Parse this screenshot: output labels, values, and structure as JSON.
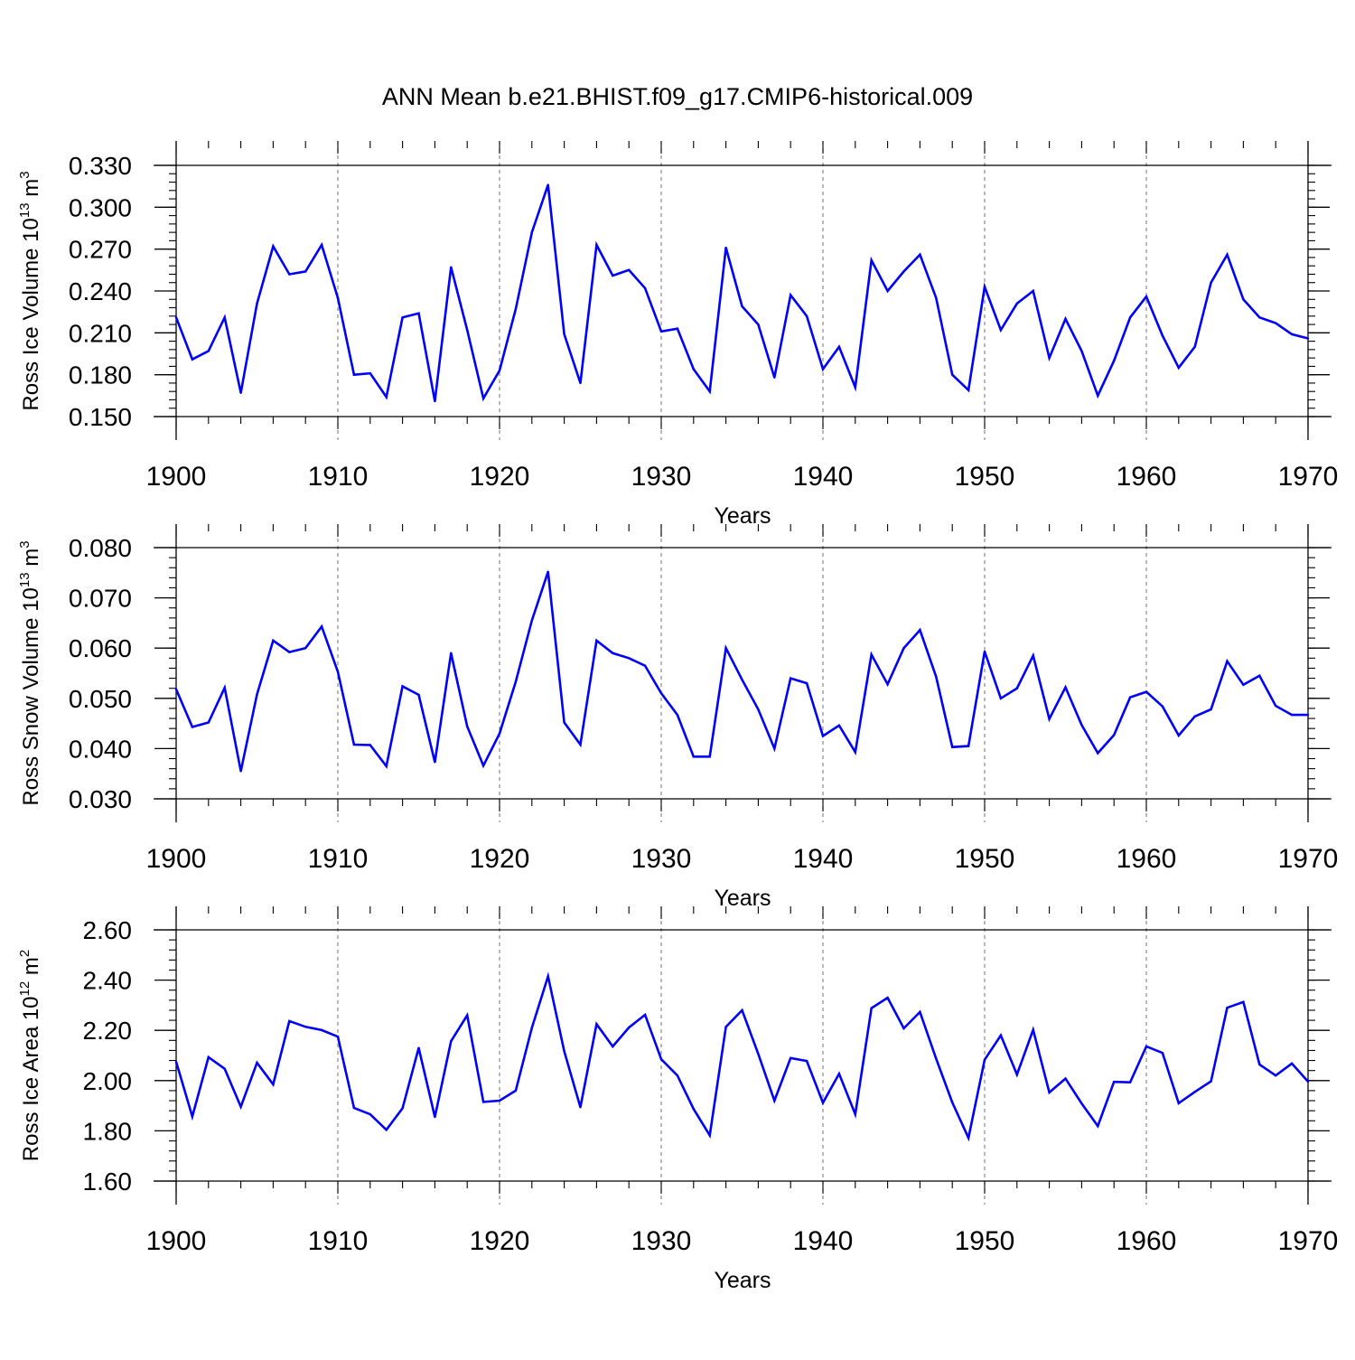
{
  "title": "ANN Mean b.e21.BHIST.f09_g17.CMIP6-historical.009",
  "line_color": "#0000ff",
  "chart_data": [
    {
      "type": "line",
      "xlabel": "Years",
      "ylabel_main": "Ross Ice Volume 10",
      "ylabel_sup": "13",
      "ylabel_unit": " m",
      "ylabel_unit_sup": "3",
      "xlim": [
        1900,
        1970
      ],
      "ylim": [
        0.15,
        0.33
      ],
      "x_ticks": [
        1900,
        1910,
        1920,
        1930,
        1940,
        1950,
        1960,
        1970
      ],
      "x_tick_labels": [
        "1900",
        "1910",
        "1920",
        "1930",
        "1940",
        "1950",
        "1960",
        "1970"
      ],
      "y_ticks": [
        0.15,
        0.18,
        0.21,
        0.24,
        0.27,
        0.3,
        0.33
      ],
      "y_tick_labels": [
        "0.150",
        "0.180",
        "0.210",
        "0.240",
        "0.270",
        "0.300",
        "0.330"
      ],
      "y_minor_step": 0.006,
      "grid": "dashed vertical at major x ticks",
      "series": [
        {
          "name": "Ross Ice Volume",
          "x": [
            1900,
            1901,
            1902,
            1903,
            1904,
            1905,
            1906,
            1907,
            1908,
            1909,
            1910,
            1911,
            1912,
            1913,
            1914,
            1915,
            1916,
            1917,
            1918,
            1919,
            1920,
            1921,
            1922,
            1923,
            1924,
            1925,
            1926,
            1927,
            1928,
            1929,
            1930,
            1931,
            1932,
            1933,
            1934,
            1935,
            1936,
            1937,
            1938,
            1939,
            1940,
            1941,
            1942,
            1943,
            1944,
            1945,
            1946,
            1947,
            1948,
            1949,
            1950,
            1951,
            1952,
            1953,
            1954,
            1955,
            1956,
            1957,
            1958,
            1959,
            1960,
            1961,
            1962,
            1963,
            1964,
            1965,
            1966,
            1967,
            1968,
            1969,
            1970
          ],
          "values": [
            0.221,
            0.191,
            0.197,
            0.221,
            0.167,
            0.231,
            0.272,
            0.252,
            0.254,
            0.273,
            0.235,
            0.18,
            0.181,
            0.164,
            0.221,
            0.224,
            0.161,
            0.257,
            0.212,
            0.163,
            0.183,
            0.227,
            0.282,
            0.316,
            0.209,
            0.174,
            0.273,
            0.251,
            0.255,
            0.242,
            0.211,
            0.213,
            0.184,
            0.168,
            0.271,
            0.229,
            0.216,
            0.178,
            0.237,
            0.222,
            0.184,
            0.2,
            0.171,
            0.262,
            0.24,
            0.254,
            0.266,
            0.235,
            0.18,
            0.169,
            0.243,
            0.212,
            0.231,
            0.24,
            0.192,
            0.22,
            0.197,
            0.165,
            0.19,
            0.221,
            0.236,
            0.208,
            0.185,
            0.2,
            0.246,
            0.266,
            0.234,
            0.221,
            0.217,
            0.209,
            0.206
          ]
        }
      ]
    },
    {
      "type": "line",
      "xlabel": "Years",
      "ylabel_main": "Ross Snow Volume 10",
      "ylabel_sup": "13",
      "ylabel_unit": " m",
      "ylabel_unit_sup": "3",
      "xlim": [
        1900,
        1970
      ],
      "ylim": [
        0.03,
        0.08
      ],
      "x_ticks": [
        1900,
        1910,
        1920,
        1930,
        1940,
        1950,
        1960,
        1970
      ],
      "x_tick_labels": [
        "1900",
        "1910",
        "1920",
        "1930",
        "1940",
        "1950",
        "1960",
        "1970"
      ],
      "y_ticks": [
        0.03,
        0.04,
        0.05,
        0.06,
        0.07,
        0.08
      ],
      "y_tick_labels": [
        "0.030",
        "0.040",
        "0.050",
        "0.060",
        "0.070",
        "0.080"
      ],
      "y_minor_step": 0.002,
      "grid": "dashed vertical at major x ticks",
      "series": [
        {
          "name": "Ross Snow Volume",
          "x": [
            1900,
            1901,
            1902,
            1903,
            1904,
            1905,
            1906,
            1907,
            1908,
            1909,
            1910,
            1911,
            1912,
            1913,
            1914,
            1915,
            1916,
            1917,
            1918,
            1919,
            1920,
            1921,
            1922,
            1923,
            1924,
            1925,
            1926,
            1927,
            1928,
            1929,
            1930,
            1931,
            1932,
            1933,
            1934,
            1935,
            1936,
            1937,
            1938,
            1939,
            1940,
            1941,
            1942,
            1943,
            1944,
            1945,
            1946,
            1947,
            1948,
            1949,
            1950,
            1951,
            1952,
            1953,
            1954,
            1955,
            1956,
            1957,
            1958,
            1959,
            1960,
            1961,
            1962,
            1963,
            1964,
            1965,
            1966,
            1967,
            1968,
            1969,
            1970
          ],
          "values": [
            0.0518,
            0.0443,
            0.0452,
            0.0521,
            0.0355,
            0.0508,
            0.0615,
            0.0592,
            0.06,
            0.0643,
            0.0553,
            0.0408,
            0.0407,
            0.0365,
            0.0524,
            0.0507,
            0.0373,
            0.059,
            0.0444,
            0.0366,
            0.043,
            0.0533,
            0.0655,
            0.0752,
            0.0452,
            0.0408,
            0.0615,
            0.059,
            0.058,
            0.0565,
            0.051,
            0.0467,
            0.0384,
            0.0384,
            0.06,
            0.0537,
            0.0478,
            0.04,
            0.054,
            0.053,
            0.0425,
            0.0446,
            0.0393,
            0.0587,
            0.0528,
            0.06,
            0.0636,
            0.0543,
            0.0403,
            0.0405,
            0.0593,
            0.05,
            0.052,
            0.0585,
            0.0459,
            0.0522,
            0.0447,
            0.0391,
            0.0427,
            0.0502,
            0.0513,
            0.0484,
            0.0426,
            0.0464,
            0.0478,
            0.0574,
            0.0527,
            0.0545,
            0.0485,
            0.0467,
            0.0467
          ]
        }
      ]
    },
    {
      "type": "line",
      "xlabel": "Years",
      "ylabel_main": "Ross Ice Area 10",
      "ylabel_sup": "12",
      "ylabel_unit": " m",
      "ylabel_unit_sup": "2",
      "xlim": [
        1900,
        1970
      ],
      "ylim": [
        1.6,
        2.6
      ],
      "x_ticks": [
        1900,
        1910,
        1920,
        1930,
        1940,
        1950,
        1960,
        1970
      ],
      "x_tick_labels": [
        "1900",
        "1910",
        "1920",
        "1930",
        "1940",
        "1950",
        "1960",
        "1970"
      ],
      "y_ticks": [
        1.6,
        1.8,
        2.0,
        2.2,
        2.4,
        2.6
      ],
      "y_tick_labels": [
        "1.60",
        "1.80",
        "2.00",
        "2.20",
        "2.40",
        "2.60"
      ],
      "y_minor_step": 0.04,
      "grid": "dashed vertical at major x ticks",
      "series": [
        {
          "name": "Ross Ice Area",
          "x": [
            1900,
            1901,
            1902,
            1903,
            1904,
            1905,
            1906,
            1907,
            1908,
            1909,
            1910,
            1911,
            1912,
            1913,
            1914,
            1915,
            1916,
            1917,
            1918,
            1919,
            1920,
            1921,
            1922,
            1923,
            1924,
            1925,
            1926,
            1927,
            1928,
            1929,
            1930,
            1931,
            1932,
            1933,
            1934,
            1935,
            1936,
            1937,
            1938,
            1939,
            1940,
            1941,
            1942,
            1943,
            1944,
            1945,
            1946,
            1947,
            1948,
            1949,
            1950,
            1951,
            1952,
            1953,
            1954,
            1955,
            1956,
            1957,
            1958,
            1959,
            1960,
            1961,
            1962,
            1963,
            1964,
            1965,
            1966,
            1967,
            1968,
            1969,
            1970
          ],
          "values": [
            2.075,
            1.857,
            2.093,
            2.047,
            1.896,
            2.071,
            1.985,
            2.237,
            2.214,
            2.201,
            2.175,
            1.891,
            1.866,
            1.804,
            1.89,
            2.13,
            1.855,
            2.157,
            2.26,
            1.915,
            1.92,
            1.96,
            2.21,
            2.415,
            2.117,
            1.894,
            2.225,
            2.136,
            2.211,
            2.262,
            2.085,
            2.02,
            1.887,
            1.782,
            2.214,
            2.28,
            2.106,
            1.92,
            2.09,
            2.078,
            1.912,
            2.027,
            1.866,
            2.288,
            2.33,
            2.208,
            2.273,
            2.087,
            1.913,
            1.772,
            2.083,
            2.18,
            2.024,
            2.202,
            1.953,
            2.008,
            1.909,
            1.819,
            1.995,
            1.993,
            2.136,
            2.11,
            1.91,
            1.955,
            1.997,
            2.29,
            2.313,
            2.064,
            2.02,
            2.068,
            1.996
          ]
        }
      ]
    }
  ]
}
